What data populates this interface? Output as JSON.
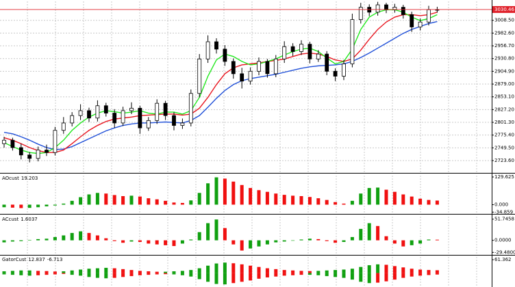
{
  "chart_data": [
    {
      "type": "candlestick",
      "up_color": "#ffffff",
      "down_color": "#000000",
      "edge_color": "#000000",
      "grid": true,
      "ylim": [
        2700,
        3047
      ],
      "yticks": [
        {
          "value": 3008.5,
          "label": "3008.50"
        },
        {
          "value": 2982.6,
          "label": "2982.60"
        },
        {
          "value": 2956.7,
          "label": "2956.70"
        },
        {
          "value": 2930.8,
          "label": "2930.80"
        },
        {
          "value": 2904.9,
          "label": "2904.90"
        },
        {
          "value": 2879.0,
          "label": "2879.00"
        },
        {
          "value": 2853.1,
          "label": "2853.10"
        },
        {
          "value": 2827.2,
          "label": "2827.20"
        },
        {
          "value": 2801.3,
          "label": "2801.30"
        },
        {
          "value": 2775.4,
          "label": "2775.40"
        },
        {
          "value": 2749.5,
          "label": "2749.50"
        },
        {
          "value": 2723.6,
          "label": "2723.60"
        }
      ],
      "last_price": 3030.46,
      "last_price_color": "#e0202a",
      "open": [
        2758,
        2765,
        2750,
        2735,
        2728,
        2745,
        2740,
        2785,
        2800,
        2815,
        2825,
        2810,
        2835,
        2820,
        2800,
        2825,
        2830,
        2790,
        2805,
        2840,
        2815,
        2795,
        2800,
        2860,
        2930,
        2965,
        2950,
        2925,
        2900,
        2885,
        2905,
        2925,
        2900,
        2930,
        2955,
        2945,
        2960,
        2930,
        2940,
        2905,
        2895,
        2920,
        3010,
        3035,
        3025,
        3040,
        3030,
        3035,
        3020,
        2995,
        3005,
        3030
      ],
      "high": [
        2772,
        2770,
        2758,
        2741,
        2752,
        2756,
        2792,
        2812,
        2822,
        2838,
        2831,
        2846,
        2841,
        2828,
        2833,
        2842,
        2835,
        2812,
        2848,
        2845,
        2822,
        2809,
        2868,
        2940,
        2978,
        2972,
        2958,
        2931,
        2912,
        2913,
        2933,
        2930,
        2938,
        2966,
        2962,
        2968,
        2965,
        2948,
        2946,
        2911,
        2928,
        3022,
        3044,
        3041,
        3046,
        3044,
        3042,
        3040,
        3026,
        3012,
        3038,
        3036
      ],
      "low": [
        2750,
        2744,
        2726,
        2720,
        2722,
        2733,
        2734,
        2778,
        2793,
        2806,
        2802,
        2803,
        2813,
        2790,
        2794,
        2818,
        2778,
        2784,
        2798,
        2806,
        2785,
        2788,
        2793,
        2852,
        2922,
        2941,
        2916,
        2890,
        2870,
        2878,
        2897,
        2892,
        2893,
        2922,
        2936,
        2938,
        2921,
        2924,
        2897,
        2885,
        2887,
        2913,
        3002,
        3017,
        3018,
        3023,
        3024,
        3012,
        2985,
        2988,
        2998,
        3024
      ],
      "close": [
        2765,
        2750,
        2735,
        2728,
        2745,
        2740,
        2785,
        2800,
        2815,
        2825,
        2810,
        2835,
        2820,
        2800,
        2825,
        2830,
        2790,
        2805,
        2840,
        2815,
        2795,
        2800,
        2860,
        2930,
        2965,
        2950,
        2925,
        2900,
        2885,
        2905,
        2925,
        2900,
        2930,
        2955,
        2945,
        2960,
        2930,
        2940,
        2905,
        2895,
        2920,
        3010,
        3035,
        3025,
        3040,
        3030,
        3035,
        3020,
        2995,
        3005,
        3030,
        3030
      ],
      "lines": [
        {
          "color": "#1f4fd8",
          "values": [
            2781,
            2778,
            2772,
            2765,
            2757,
            2750,
            2746,
            2747,
            2752,
            2760,
            2768,
            2776,
            2784,
            2790,
            2795,
            2798,
            2800,
            2800,
            2801,
            2802,
            2801,
            2800,
            2805,
            2815,
            2832,
            2850,
            2866,
            2878,
            2886,
            2890,
            2893,
            2896,
            2899,
            2903,
            2907,
            2911,
            2914,
            2916,
            2917,
            2918,
            2920,
            2925,
            2933,
            2942,
            2952,
            2962,
            2972,
            2982,
            2990,
            2996,
            3002,
            3006
          ]
        },
        {
          "color": "#e8141e",
          "values": [
            2770,
            2765,
            2758,
            2750,
            2744,
            2740,
            2740,
            2745,
            2758,
            2772,
            2785,
            2795,
            2803,
            2808,
            2810,
            2812,
            2815,
            2816,
            2817,
            2818,
            2818,
            2816,
            2818,
            2830,
            2852,
            2878,
            2900,
            2912,
            2918,
            2920,
            2922,
            2925,
            2927,
            2930,
            2935,
            2940,
            2942,
            2940,
            2935,
            2928,
            2925,
            2930,
            2948,
            2970,
            2990,
            3005,
            3015,
            3020,
            3020,
            3018,
            3020,
            3025
          ]
        },
        {
          "color": "#22e81e",
          "values": [
            2760,
            2752,
            2745,
            2740,
            2738,
            2740,
            2750,
            2765,
            2785,
            2800,
            2812,
            2820,
            2825,
            2823,
            2820,
            2822,
            2825,
            2820,
            2818,
            2822,
            2822,
            2818,
            2825,
            2852,
            2895,
            2928,
            2940,
            2935,
            2925,
            2918,
            2920,
            2925,
            2930,
            2938,
            2945,
            2950,
            2952,
            2945,
            2932,
            2920,
            2925,
            2950,
            2990,
            3015,
            3025,
            3030,
            3030,
            3025,
            3015,
            3008,
            3012,
            3020
          ]
        }
      ]
    },
    {
      "type": "bar",
      "title": "AOcust",
      "color_by": "rise",
      "up_color": "#10a010",
      "down_color": "#f01010",
      "ylim": [
        -40,
        136
      ],
      "yticks": [
        129.625,
        {
          "value": 0,
          "label": "0.000"
        },
        -34.859
      ],
      "series": [
        {
          "values": [
            -12,
            -14,
            -16,
            -15,
            -12,
            -8,
            -4,
            5,
            18,
            35,
            48,
            55,
            52,
            45,
            40,
            42,
            38,
            30,
            25,
            18,
            10,
            8,
            20,
            55,
            100,
            128,
            122,
            108,
            92,
            78,
            68,
            60,
            52,
            46,
            42,
            40,
            36,
            30,
            22,
            12,
            5,
            18,
            52,
            78,
            80,
            70,
            60,
            48,
            38,
            28,
            22,
            19.203
          ]
        }
      ]
    },
    {
      "type": "bar",
      "title": "ACcust",
      "color_by": "rise",
      "up_color": "#10a010",
      "down_color": "#f01010",
      "ylim": [
        -34,
        58
      ],
      "yticks": [
        51.7458,
        {
          "value": 0,
          "label": "0.0000"
        },
        {
          "value": -29.48,
          "label": "-29.4800"
        }
      ],
      "series": [
        {
          "values": [
            -5,
            -3,
            -2,
            1,
            3,
            4,
            8,
            12,
            18,
            22,
            18,
            12,
            5,
            -2,
            -6,
            -3,
            -4,
            -8,
            -10,
            -12,
            -14,
            -8,
            2,
            20,
            42,
            51,
            30,
            -10,
            -25,
            -20,
            -15,
            -10,
            -5,
            -3,
            -1,
            2,
            4,
            3,
            -2,
            -6,
            -4,
            8,
            28,
            42,
            35,
            10,
            -8,
            -15,
            -12,
            -8,
            2,
            1.6037
          ]
        }
      ]
    },
    {
      "type": "bar",
      "title": "GatorCust",
      "color_by": "abs_rise",
      "up_color": "#10a010",
      "down_color": "#f01010",
      "ylim": [
        -64,
        74
      ],
      "yticks": [
        61.362
      ],
      "series": [
        {
          "values": [
            8,
            10,
            12,
            12,
            10,
            9,
            7,
            8,
            12,
            16,
            20,
            22,
            24,
            22,
            18,
            14,
            10,
            8,
            6,
            6,
            8,
            10,
            14,
            22,
            34,
            44,
            48,
            45,
            40,
            34,
            28,
            22,
            18,
            14,
            12,
            10,
            9,
            10,
            12,
            14,
            16,
            20,
            28,
            36,
            40,
            38,
            32,
            26,
            20,
            16,
            14,
            12.837
          ]
        },
        {
          "values": [
            -6,
            -8,
            -10,
            -12,
            -10,
            -8,
            -6,
            -4,
            -8,
            -12,
            -18,
            -22,
            -24,
            -22,
            -18,
            -14,
            -10,
            -8,
            -6,
            -5,
            -6,
            -10,
            -16,
            -28,
            -40,
            -50,
            -52,
            -46,
            -40,
            -34,
            -26,
            -20,
            -16,
            -12,
            -10,
            -8,
            -8,
            -10,
            -14,
            -18,
            -22,
            -30,
            -40,
            -46,
            -44,
            -38,
            -30,
            -22,
            -16,
            -12,
            -9,
            -6.713
          ]
        }
      ]
    }
  ]
}
